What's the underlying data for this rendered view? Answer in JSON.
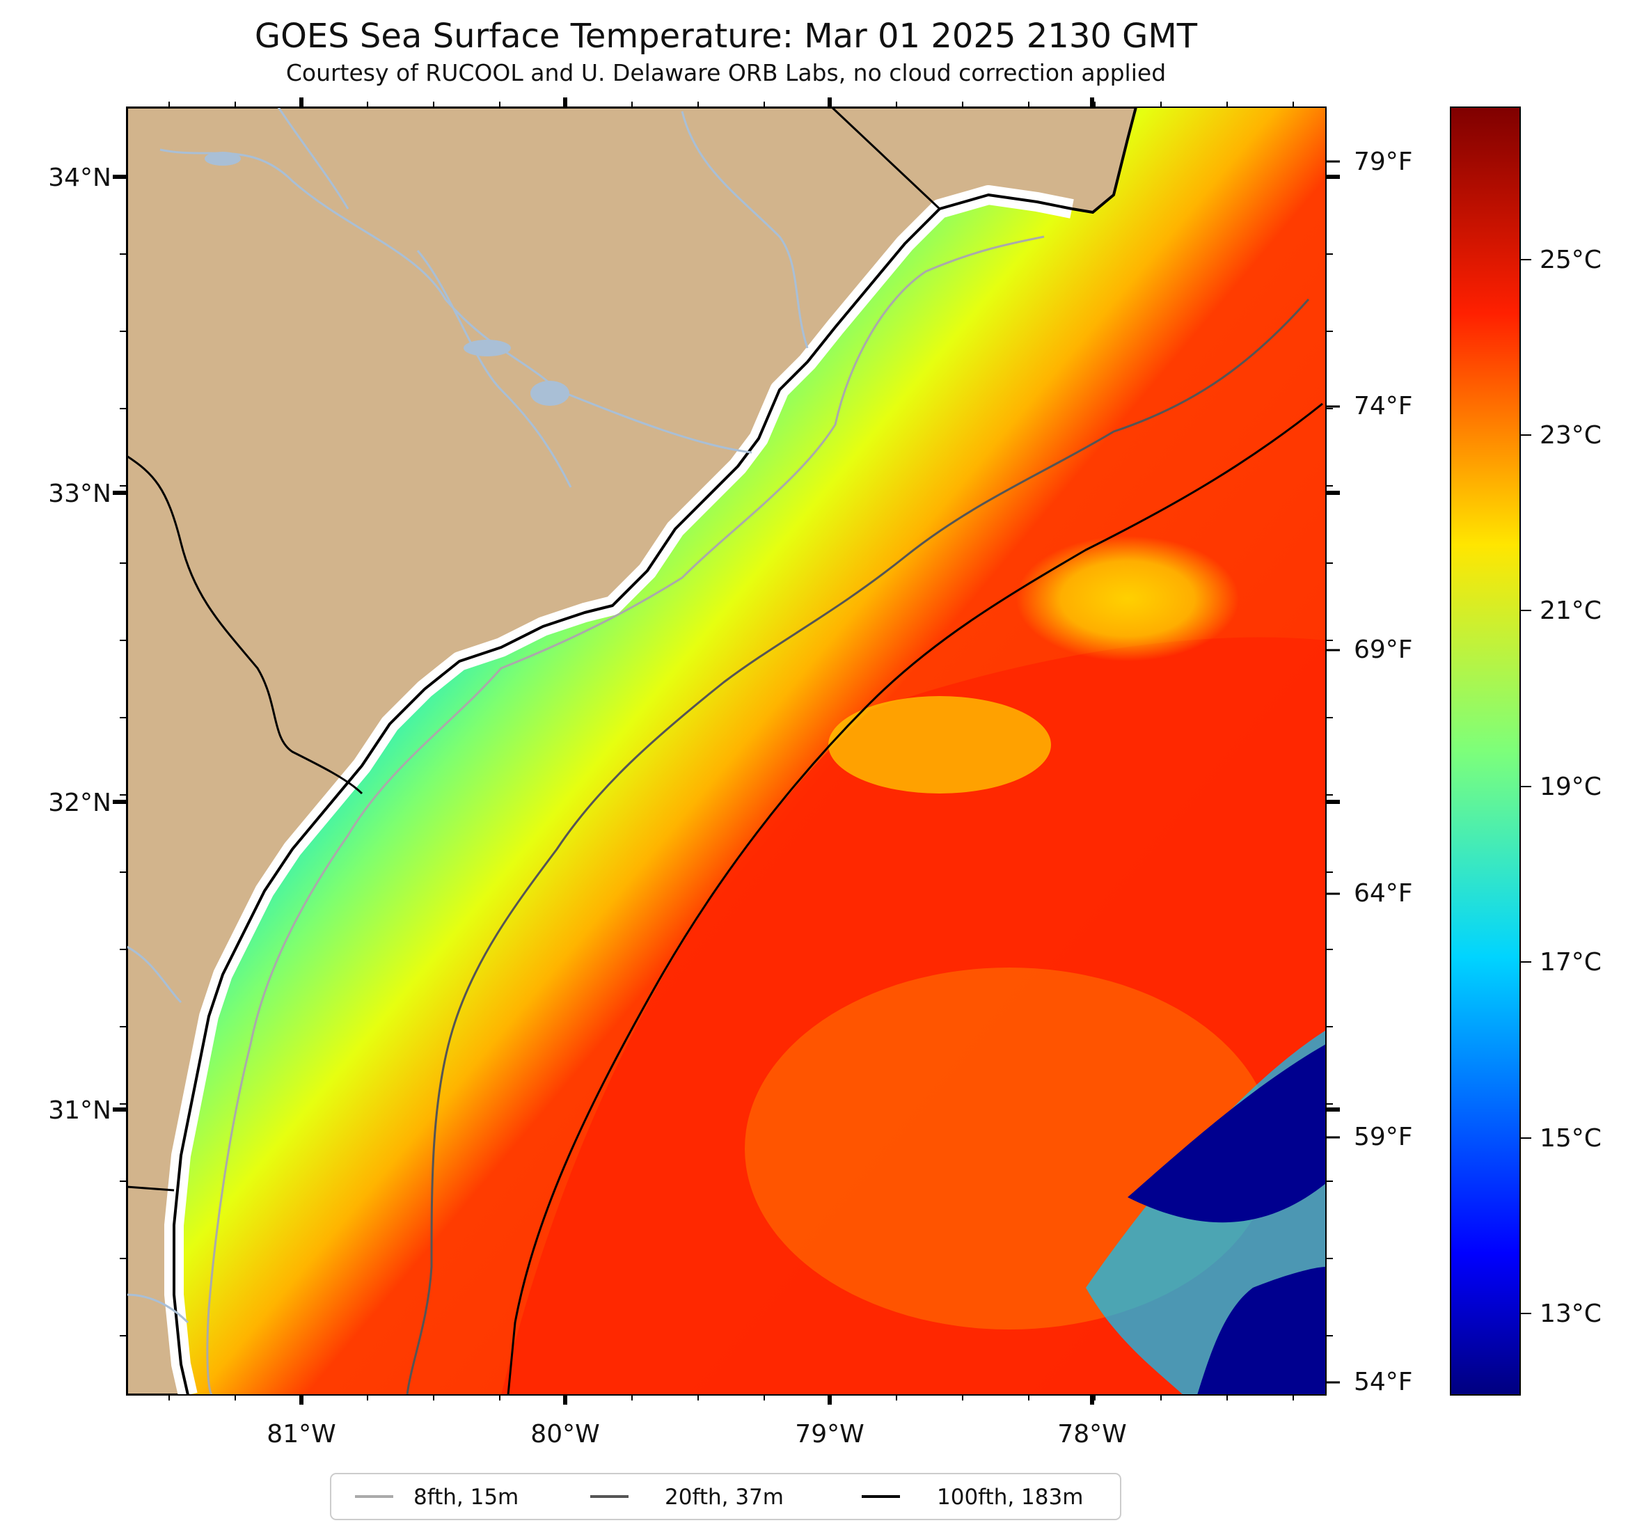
{
  "title": "GOES Sea Surface Temperature: Mar 01 2025 2130 GMT",
  "subtitle": "Courtesy of RUCOOL and U. Delaware ORB Labs, no cloud correction applied",
  "map": {
    "lat_range": [
      30.1,
      34.22
    ],
    "lon_range": [
      -81.67,
      -77.12
    ],
    "lat_labels": [
      "34°N",
      "33°N",
      "32°N",
      "31°N"
    ],
    "lon_labels": [
      "81°W",
      "80°W",
      "79°W",
      "78°W"
    ],
    "land_color": "#d2b48c",
    "river_color": "#a9bfd6"
  },
  "fahrenheit_labels": [
    "79°F",
    "74°F",
    "69°F",
    "64°F",
    "59°F",
    "54°F"
  ],
  "colorbar": {
    "labels": [
      "25°C",
      "23°C",
      "21°C",
      "19°C",
      "17°C",
      "15°C",
      "13°C"
    ],
    "range_c": [
      12.0,
      26.7
    ],
    "colormap": "jet"
  },
  "legend": [
    {
      "label": "8fth, 15m",
      "color": "#aaaaaa"
    },
    {
      "label": "20fth, 37m",
      "color": "#555555"
    },
    {
      "label": "100fth, 183m",
      "color": "#000000"
    }
  ]
}
